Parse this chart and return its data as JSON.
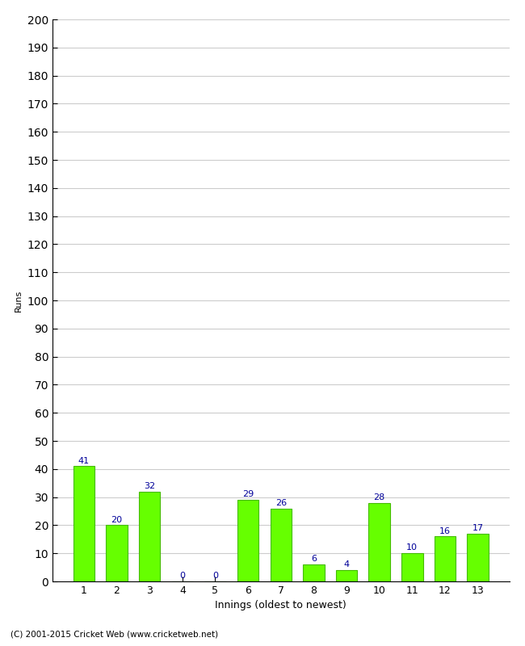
{
  "title": "",
  "xlabel": "Innings (oldest to newest)",
  "ylabel": "Runs",
  "categories": [
    "1",
    "2",
    "3",
    "4",
    "5",
    "6",
    "7",
    "8",
    "9",
    "10",
    "11",
    "12",
    "13"
  ],
  "values": [
    41,
    20,
    32,
    0,
    0,
    29,
    26,
    6,
    4,
    28,
    10,
    16,
    17
  ],
  "bar_color": "#66ff00",
  "bar_edge_color": "#44bb00",
  "label_color": "#000099",
  "ylim": [
    0,
    200
  ],
  "ytick_interval": 10,
  "background_color": "#ffffff",
  "grid_color": "#cccccc",
  "footer_text": "(C) 2001-2015 Cricket Web (www.cricketweb.net)",
  "label_fontsize": 8,
  "axis_fontsize": 9,
  "ylabel_fontsize": 8
}
